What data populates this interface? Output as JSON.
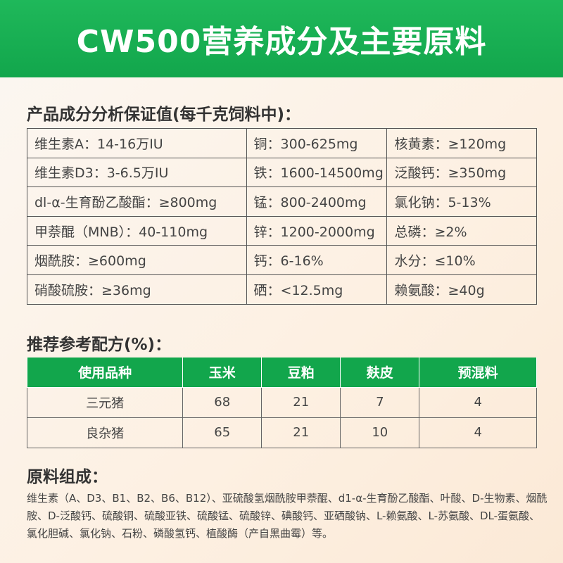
{
  "title": "CW500营养成分及主要原料",
  "guarantee": {
    "heading": "产品成分分析保证值(每千克饲料中)：",
    "rows": [
      [
        "维生素A：14-16万IU",
        "铜：300-625mg",
        "核黄素：≥120mg"
      ],
      [
        "维生素D3：3-6.5万IU",
        "铁：1600-14500mg",
        "泛酸钙：≥350mg"
      ],
      [
        "dl-α-生育酚乙酸酯：≥800mg",
        "锰：800-2400mg",
        "氯化钠：5-13%"
      ],
      [
        "甲萘醌（MNB）：40-110mg",
        "锌：1200-2000mg",
        "总磷：≥2%"
      ],
      [
        "烟酰胺：≥600mg",
        "钙：6-16%",
        "水分：≤10%"
      ],
      [
        "硝酸硫胺：≥36mg",
        "硒：<12.5mg",
        "赖氨酸：≥40g"
      ]
    ]
  },
  "formula": {
    "heading": "推荐参考配方(%)：",
    "columns": [
      "使用品种",
      "玉米",
      "豆粕",
      "麸皮",
      "预混料"
    ],
    "rows": [
      [
        "三元猪",
        "68",
        "21",
        "7",
        "4"
      ],
      [
        "良杂猪",
        "65",
        "21",
        "10",
        "4"
      ]
    ]
  },
  "ingredients": {
    "heading": "原料组成：",
    "text": "维生素（A、D3、B1、B2、B6、B12）、亚硫酸氢烟酰胺甲萘醌、d1-α-生育酚乙酸酯、叶酸、D-生物素、烟酰胺、D-泛酸钙、硫酸铜、硫酸亚铁、硫酸锰、硫酸锌、碘酸钙、亚硒酸钠、L-赖氨酸、L-苏氨酸、DL-蛋氨酸、氯化胆碱、氯化钠、石粉、磷酸氢钙、植酸酶（产自黑曲霉）等。"
  },
  "colors": {
    "brand_green": "#12a64c"
  }
}
